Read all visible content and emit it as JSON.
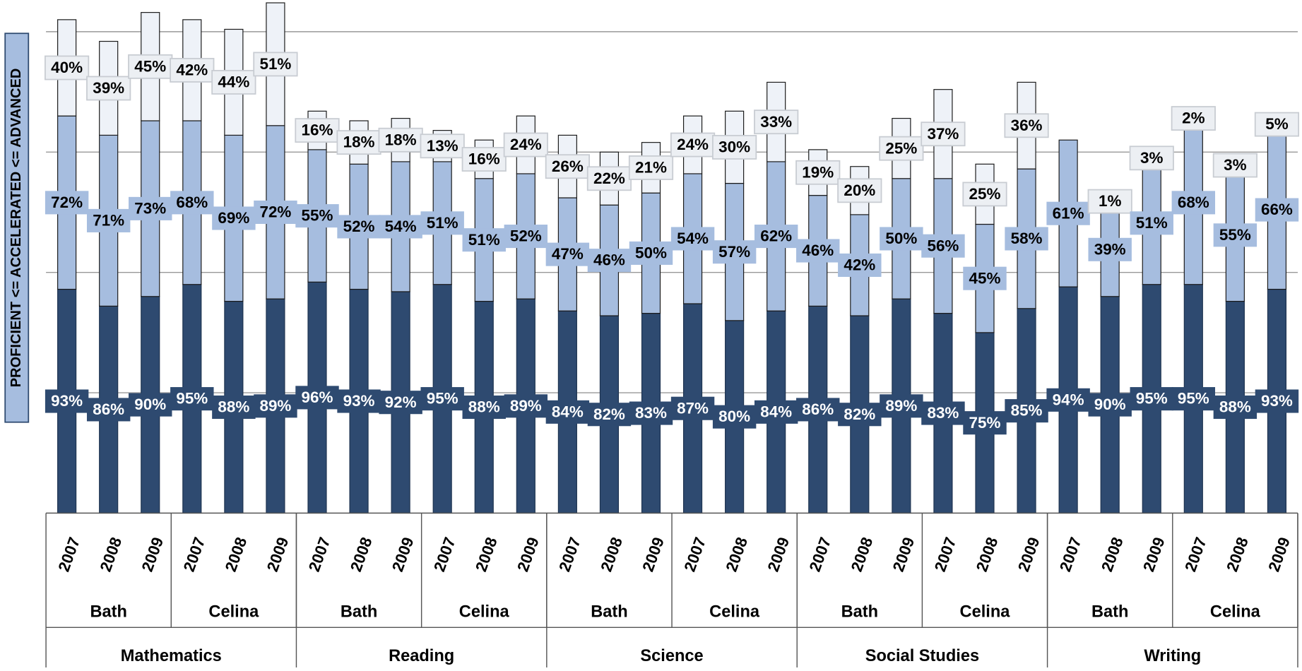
{
  "chart_data": {
    "type": "bar",
    "stacked": true,
    "y_label": "PROFICIENT <= ACCELERATED <= ADVANCED",
    "categories": [
      "2007",
      "2008",
      "2009",
      "2007",
      "2008",
      "2009",
      "2007",
      "2008",
      "2009",
      "2007",
      "2008",
      "2009",
      "2007",
      "2008",
      "2009",
      "2007",
      "2008",
      "2009",
      "2007",
      "2008",
      "2009",
      "2007",
      "2008",
      "2009",
      "2007",
      "2008",
      "2009",
      "2007",
      "2008",
      "2009"
    ],
    "groups": [
      "Bath",
      "Celina",
      "Bath",
      "Celina",
      "Bath",
      "Celina",
      "Bath",
      "Celina",
      "Bath",
      "Celina"
    ],
    "supergroups": [
      "Mathematics",
      "Reading",
      "Science",
      "Social Studies",
      "Writing"
    ],
    "ylim": [
      0,
      200
    ],
    "yticks": [
      0,
      50,
      100,
      150,
      200
    ],
    "grid": true,
    "series": [
      {
        "color": "#2e4a70",
        "label_text_color": "#ffffff",
        "values": [
          93,
          86,
          90,
          95,
          88,
          89,
          96,
          93,
          92,
          95,
          88,
          89,
          84,
          82,
          83,
          87,
          80,
          84,
          86,
          82,
          89,
          83,
          75,
          85,
          94,
          90,
          95,
          95,
          88,
          93
        ],
        "value_labels": [
          "93%",
          "86%",
          "90%",
          "95%",
          "88%",
          "89%",
          "96%",
          "93%",
          "92%",
          "95%",
          "88%",
          "89%",
          "84%",
          "82%",
          "83%",
          "87%",
          "80%",
          "84%",
          "86%",
          "82%",
          "89%",
          "83%",
          "75%",
          "85%",
          "94%",
          "90%",
          "95%",
          "95%",
          "88%",
          "93%"
        ]
      },
      {
        "color": "#a6bddf",
        "label_text_color": "#000000",
        "values": [
          72,
          71,
          73,
          68,
          69,
          72,
          55,
          52,
          54,
          51,
          51,
          52,
          47,
          46,
          50,
          54,
          57,
          62,
          46,
          42,
          50,
          56,
          45,
          58,
          61,
          39,
          51,
          68,
          55,
          66
        ],
        "value_labels": [
          "72%",
          "71%",
          "73%",
          "68%",
          "69%",
          "72%",
          "55%",
          "52%",
          "54%",
          "51%",
          "51%",
          "52%",
          "47%",
          "46%",
          "50%",
          "54%",
          "57%",
          "62%",
          "46%",
          "42%",
          "50%",
          "56%",
          "45%",
          "58%",
          "61%",
          "39%",
          "51%",
          "68%",
          "55%",
          "66%"
        ]
      },
      {
        "color": "#eef2f8",
        "label_text_color": "#000000",
        "values": [
          40,
          39,
          45,
          42,
          44,
          51,
          16,
          18,
          18,
          13,
          16,
          24,
          26,
          22,
          21,
          24,
          30,
          33,
          19,
          20,
          25,
          37,
          25,
          36,
          null,
          1,
          3,
          2,
          3,
          5
        ],
        "value_labels": [
          "40%",
          "39%",
          "45%",
          "42%",
          "44%",
          "51%",
          "16%",
          "18%",
          "18%",
          "13%",
          "16%",
          "24%",
          "26%",
          "22%",
          "21%",
          "24%",
          "30%",
          "33%",
          "19%",
          "20%",
          "25%",
          "37%",
          "25%",
          "36%",
          null,
          "1%",
          "3%",
          "2%",
          "3%",
          "5%"
        ]
      }
    ]
  }
}
